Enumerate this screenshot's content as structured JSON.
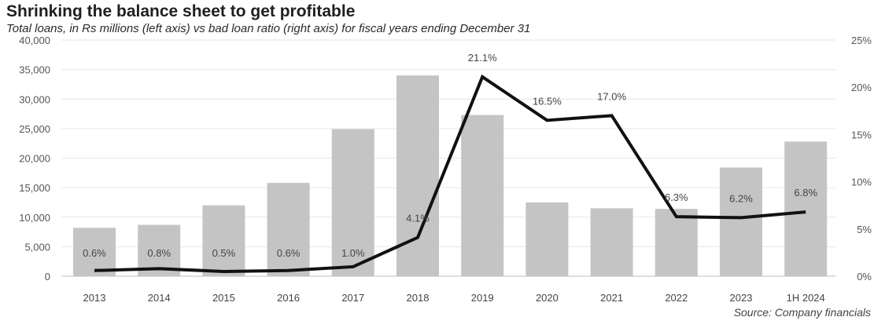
{
  "title": "Shrinking the balance sheet to get profitable",
  "subtitle": "Total loans, in Rs millions (left axis) vs bad loan ratio (right axis) for fiscal years ending December 31",
  "source": "Source: Company financials",
  "colors": {
    "bar": "#c4c4c4",
    "line": "#111111",
    "grid": "#e6e6e6"
  },
  "chart_data": {
    "type": "bar",
    "categories": [
      "2013",
      "2014",
      "2015",
      "2016",
      "2017",
      "2018",
      "2019",
      "2020",
      "2021",
      "2022",
      "2023",
      "1H 2024"
    ],
    "series": [
      {
        "type": "bar",
        "axis": "left",
        "values": [
          8200,
          8700,
          12000,
          15800,
          24900,
          34000,
          27300,
          12500,
          11500,
          11400,
          18400,
          22800
        ]
      },
      {
        "type": "line",
        "axis": "right",
        "values": [
          0.6,
          0.8,
          0.5,
          0.6,
          1.0,
          4.1,
          21.1,
          16.5,
          17.0,
          6.3,
          6.2,
          6.8
        ],
        "labels": [
          "0.6%",
          "0.8%",
          "0.5%",
          "0.6%",
          "1.0%",
          "4.1%",
          "21.1%",
          "16.5%",
          "17.0%",
          "6.3%",
          "6.2%",
          "6.8%"
        ]
      }
    ],
    "y_left": {
      "range": [
        0,
        40000
      ],
      "ticks": [
        0,
        5000,
        10000,
        15000,
        20000,
        25000,
        30000,
        35000,
        40000
      ],
      "tick_labels": [
        "0",
        "5,000",
        "10,000",
        "15,000",
        "20,000",
        "25,000",
        "30,000",
        "35,000",
        "40,000"
      ]
    },
    "y_right": {
      "range": [
        0,
        25
      ],
      "ticks": [
        0,
        5,
        10,
        15,
        20,
        25
      ],
      "tick_labels": [
        "0%",
        "5%",
        "10%",
        "15%",
        "20%",
        "25%"
      ]
    },
    "grid": true
  }
}
